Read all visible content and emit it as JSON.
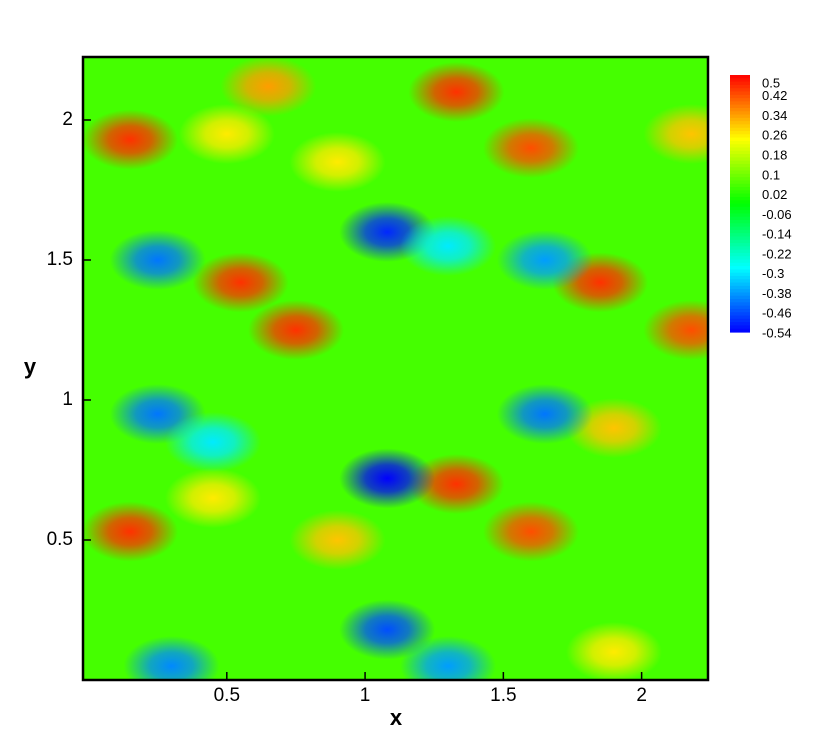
{
  "chart_data": {
    "type": "contour",
    "x_label": "x",
    "y_label": "y",
    "xlim": [
      -0.02,
      2.24
    ],
    "ylim": [
      0,
      2.225
    ],
    "xticks": [
      0.5,
      1,
      1.5,
      2
    ],
    "yticks": [
      0.5,
      1,
      1.5,
      2
    ],
    "colorbar_levels": [
      0.5,
      0.42,
      0.34,
      0.26,
      0.18,
      0.1,
      0.02,
      -0.06,
      -0.14,
      -0.22,
      -0.3,
      -0.38,
      -0.46,
      -0.54
    ],
    "clim": [
      -0.54,
      0.5
    ],
    "colormap": [
      "#0000ff",
      "#00ffff",
      "#00ff00",
      "#ffff00",
      "#ff0000"
    ],
    "background_value": 0.05,
    "points": [
      {
        "x": 0.15,
        "y": 1.93,
        "value": 0.45
      },
      {
        "x": 1.33,
        "y": 2.1,
        "value": 0.45
      },
      {
        "x": 1.6,
        "y": 1.9,
        "value": 0.42
      },
      {
        "x": 0.55,
        "y": 1.42,
        "value": 0.45
      },
      {
        "x": 0.75,
        "y": 1.25,
        "value": 0.45
      },
      {
        "x": 1.85,
        "y": 1.42,
        "value": 0.45
      },
      {
        "x": 2.18,
        "y": 1.25,
        "value": 0.42
      },
      {
        "x": 0.15,
        "y": 0.53,
        "value": 0.45
      },
      {
        "x": 1.33,
        "y": 0.7,
        "value": 0.45
      },
      {
        "x": 1.6,
        "y": 0.53,
        "value": 0.42
      },
      {
        "x": 0.65,
        "y": 2.12,
        "value": 0.34
      },
      {
        "x": 2.18,
        "y": 1.95,
        "value": 0.3
      },
      {
        "x": 0.5,
        "y": 1.95,
        "value": 0.26
      },
      {
        "x": 0.9,
        "y": 1.85,
        "value": 0.26
      },
      {
        "x": 1.9,
        "y": 0.9,
        "value": 0.3
      },
      {
        "x": 0.9,
        "y": 0.5,
        "value": 0.3
      },
      {
        "x": 0.45,
        "y": 0.65,
        "value": 0.26
      },
      {
        "x": 1.9,
        "y": 0.1,
        "value": 0.26
      },
      {
        "x": 1.08,
        "y": 1.6,
        "value": -0.5
      },
      {
        "x": 1.08,
        "y": 0.72,
        "value": -0.54
      },
      {
        "x": 1.08,
        "y": 0.18,
        "value": -0.46
      },
      {
        "x": 0.25,
        "y": 1.5,
        "value": -0.42
      },
      {
        "x": 0.25,
        "y": 0.95,
        "value": -0.42
      },
      {
        "x": 0.3,
        "y": 0.05,
        "value": -0.4
      },
      {
        "x": 1.65,
        "y": 1.5,
        "value": -0.38
      },
      {
        "x": 1.65,
        "y": 0.95,
        "value": -0.42
      },
      {
        "x": 1.3,
        "y": 0.05,
        "value": -0.38
      },
      {
        "x": 1.3,
        "y": 1.55,
        "value": -0.3
      },
      {
        "x": 0.45,
        "y": 0.85,
        "value": -0.3
      }
    ]
  }
}
